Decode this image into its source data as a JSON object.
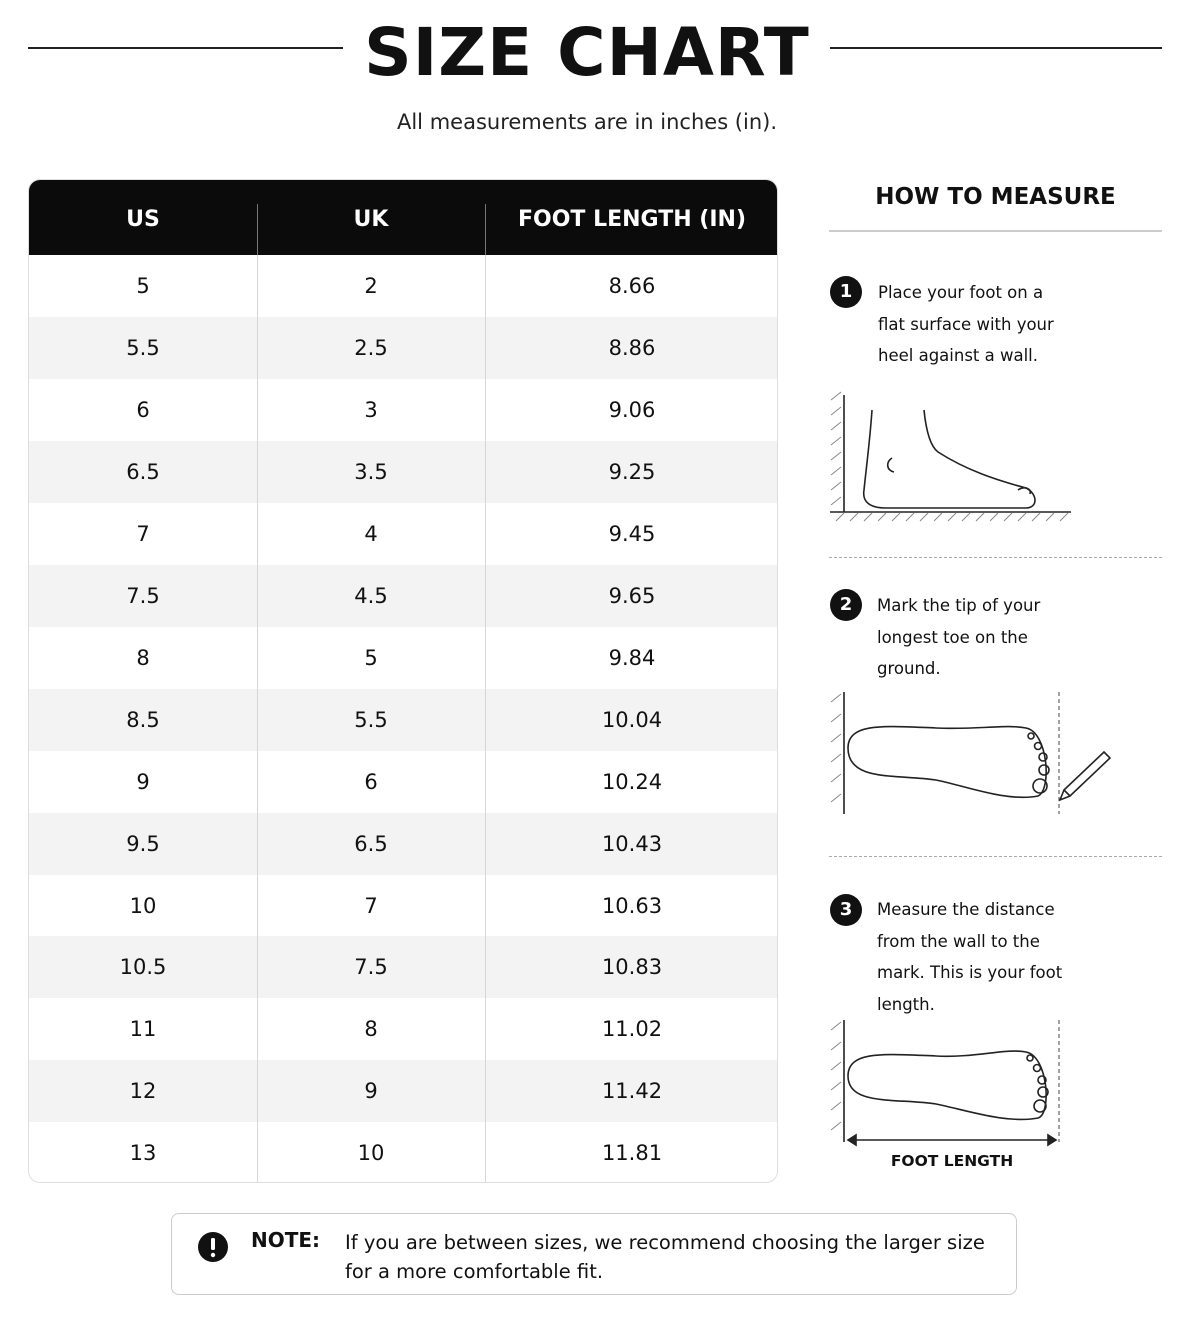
{
  "header": {
    "title": "SIZE CHART",
    "subtitle": "All measurements are in inches (in)."
  },
  "table": {
    "columns": [
      "US",
      "UK",
      "FOOT LENGTH (IN)"
    ],
    "rows": [
      [
        "5",
        "2",
        "8.66"
      ],
      [
        "5.5",
        "2.5",
        "8.86"
      ],
      [
        "6",
        "3",
        "9.06"
      ],
      [
        "6.5",
        "3.5",
        "9.25"
      ],
      [
        "7",
        "4",
        "9.45"
      ],
      [
        "7.5",
        "4.5",
        "9.65"
      ],
      [
        "8",
        "5",
        "9.84"
      ],
      [
        "8.5",
        "5.5",
        "10.04"
      ],
      [
        "9",
        "6",
        "10.24"
      ],
      [
        "9.5",
        "6.5",
        "10.43"
      ],
      [
        "10",
        "7",
        "10.63"
      ],
      [
        "10.5",
        "7.5",
        "10.83"
      ],
      [
        "11",
        "8",
        "11.02"
      ],
      [
        "12",
        "9",
        "11.42"
      ],
      [
        "13",
        "10",
        "11.81"
      ]
    ]
  },
  "how_to_measure": {
    "title": "HOW TO MEASURE",
    "steps": [
      {
        "number": "1",
        "text": "Place your foot on a flat surface with your heel against a wall."
      },
      {
        "number": "2",
        "text": "Mark the tip of your longest toe on the ground."
      },
      {
        "number": "3",
        "text": "Measure the distance from the wall to the mark. This is your foot length."
      }
    ],
    "diagram_label": "FOOT LENGTH"
  },
  "note": {
    "label": "NOTE:",
    "text": "If you are between sizes, we recommend choosing the larger size for a more comfortable fit."
  }
}
